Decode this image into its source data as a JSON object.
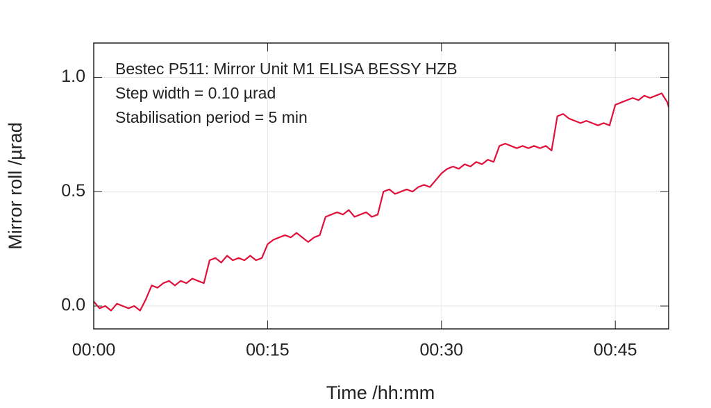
{
  "chart_data": {
    "type": "line",
    "annotations": [
      "Bestec P511: Mirror Unit M1 ELISA BESSY HZB",
      "Step width = 0.10 µrad",
      "Stabilisation period = 5 min"
    ],
    "x_label": "Time /hh:mm",
    "y_label": "Mirror roll /µrad",
    "color": "#e0103a",
    "x": [
      0,
      0.5,
      1,
      1.5,
      2,
      2.5,
      3,
      3.5,
      4,
      4.5,
      5,
      5.5,
      6,
      6.5,
      7,
      7.5,
      8,
      8.5,
      9,
      9.5,
      10,
      10.5,
      11,
      11.5,
      12,
      12.5,
      13,
      13.5,
      14,
      14.5,
      15,
      15.5,
      16,
      16.5,
      17,
      17.5,
      18,
      18.5,
      19,
      19.5,
      20,
      20.5,
      21,
      21.5,
      22,
      22.5,
      23,
      23.5,
      24,
      24.5,
      25,
      25.5,
      26,
      26.5,
      27,
      27.5,
      28,
      28.5,
      29,
      29.5,
      30,
      30.5,
      31,
      31.5,
      32,
      32.5,
      33,
      33.5,
      34,
      34.5,
      35,
      35.5,
      36,
      36.5,
      37,
      37.5,
      38,
      38.5,
      39,
      39.5,
      40,
      40.5,
      41,
      41.5,
      42,
      42.5,
      43,
      43.5,
      44,
      44.5,
      45,
      45.5,
      46,
      46.5,
      47,
      47.5,
      48,
      48.5,
      49,
      49.5,
      49.6
    ],
    "values": [
      0.02,
      -0.01,
      0.0,
      -0.02,
      0.01,
      0.0,
      -0.01,
      0.0,
      -0.02,
      0.03,
      0.09,
      0.08,
      0.1,
      0.11,
      0.09,
      0.11,
      0.1,
      0.12,
      0.11,
      0.1,
      0.2,
      0.21,
      0.19,
      0.22,
      0.2,
      0.21,
      0.2,
      0.22,
      0.2,
      0.21,
      0.27,
      0.29,
      0.3,
      0.31,
      0.3,
      0.32,
      0.3,
      0.28,
      0.3,
      0.31,
      0.39,
      0.4,
      0.41,
      0.4,
      0.42,
      0.39,
      0.4,
      0.41,
      0.39,
      0.4,
      0.5,
      0.51,
      0.49,
      0.5,
      0.51,
      0.5,
      0.52,
      0.53,
      0.52,
      0.55,
      0.58,
      0.6,
      0.61,
      0.6,
      0.62,
      0.61,
      0.63,
      0.62,
      0.64,
      0.63,
      0.7,
      0.71,
      0.7,
      0.69,
      0.7,
      0.69,
      0.7,
      0.69,
      0.7,
      0.68,
      0.83,
      0.84,
      0.82,
      0.81,
      0.8,
      0.81,
      0.8,
      0.79,
      0.8,
      0.79,
      0.88,
      0.89,
      0.9,
      0.91,
      0.9,
      0.92,
      0.91,
      0.92,
      0.93,
      0.89,
      0.87
    ],
    "xlim": [
      0,
      49.6
    ],
    "ylim": [
      -0.1,
      1.15
    ],
    "xticks": [
      {
        "value": 0,
        "label": "00:00"
      },
      {
        "value": 15,
        "label": "00:15"
      },
      {
        "value": 30,
        "label": "00:30"
      },
      {
        "value": 45,
        "label": "00:45"
      }
    ],
    "yticks": [
      {
        "value": 0,
        "label": "0.0"
      },
      {
        "value": 0.5,
        "label": "0.5"
      },
      {
        "value": 1,
        "label": "1.0"
      }
    ],
    "grid": true
  }
}
